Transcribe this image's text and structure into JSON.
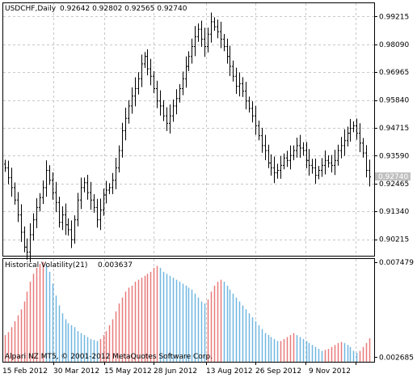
{
  "chart_data": [
    {
      "type": "bar",
      "chart_style": "ohlc-bars",
      "title": "USDCHF,Daily",
      "ohlc_text": "0.92642 0.92802 0.92565 0.92740",
      "symbol": "USDCHF",
      "timeframe": "Daily",
      "last_ohlc": {
        "open": 0.92642,
        "high": 0.92802,
        "low": 0.92565,
        "close": 0.9274
      },
      "last_price_label": "0.92740",
      "ylim": [
        0.8955,
        0.9975
      ],
      "y_ticks": [
        "0.99215",
        "0.98090",
        "0.96965",
        "0.95840",
        "0.94715",
        "0.93590",
        "0.92465",
        "0.91340",
        "0.90215"
      ],
      "grid": true,
      "series": [
        {
          "values": [
            0.931,
            0.927,
            0.923,
            0.918,
            0.912,
            0.905,
            0.899,
            0.897,
            0.904,
            0.91,
            0.915,
            0.919,
            0.923,
            0.93,
            0.926,
            0.921,
            0.917,
            0.909,
            0.912,
            0.908,
            0.906,
            0.902,
            0.91,
            0.918,
            0.923,
            0.925,
            0.921,
            0.918,
            0.915,
            0.91,
            0.914,
            0.92,
            0.922,
            0.923,
            0.926,
            0.931,
            0.938,
            0.946,
            0.951,
            0.956,
            0.96,
            0.963,
            0.967,
            0.973,
            0.976,
            0.971,
            0.968,
            0.963,
            0.958,
            0.956,
            0.952,
            0.949,
            0.952,
            0.956,
            0.959,
            0.963,
            0.967,
            0.972,
            0.976,
            0.98,
            0.984,
            0.987,
            0.983,
            0.98,
            0.985,
            0.99,
            0.988,
            0.986,
            0.983,
            0.98,
            0.976,
            0.972,
            0.968,
            0.964,
            0.965,
            0.962,
            0.958,
            0.955,
            0.952,
            0.948,
            0.944,
            0.94,
            0.938,
            0.933,
            0.931,
            0.929,
            0.93,
            0.932,
            0.935,
            0.934,
            0.936,
            0.938,
            0.94,
            0.939,
            0.938,
            0.934,
            0.932,
            0.931,
            0.928,
            0.93,
            0.932,
            0.934,
            0.933,
            0.932,
            0.934,
            0.938,
            0.94,
            0.942,
            0.945,
            0.947,
            0.948,
            0.945,
            0.941,
            0.937,
            0.93,
            0.9274
          ]
        }
      ]
    },
    {
      "type": "bar",
      "title": "Historical Volatility(21)",
      "last_value": "0.003637",
      "ylim": [
        0.00245,
        0.00765
      ],
      "y_ticks": [
        "0.007479",
        "0.002685"
      ],
      "grid": true,
      "series": [
        {
          "values": [
            0.0038,
            0.00395,
            0.0042,
            0.0045,
            0.0048,
            0.0051,
            0.0055,
            0.006,
            0.0065,
            0.0069,
            0.0072,
            0.0074,
            0.0075,
            0.00735,
            0.007,
            0.0064,
            0.0058,
            0.0053,
            0.0049,
            0.0046,
            0.0044,
            0.0043,
            0.0042,
            0.004,
            0.0039,
            0.0038,
            0.0037,
            0.0036,
            0.00355,
            0.0035,
            0.0036,
            0.0038,
            0.004,
            0.0043,
            0.0046,
            0.005,
            0.0054,
            0.0057,
            0.006,
            0.0062,
            0.0063,
            0.0065,
            0.0066,
            0.0067,
            0.0068,
            0.0069,
            0.007,
            0.0072,
            0.0073,
            0.0072,
            0.007,
            0.0069,
            0.0068,
            0.0067,
            0.0066,
            0.0065,
            0.0064,
            0.0063,
            0.0062,
            0.0061,
            0.0059,
            0.0057,
            0.0055,
            0.0054,
            0.0056,
            0.006,
            0.0063,
            0.0065,
            0.0066,
            0.0065,
            0.0063,
            0.0061,
            0.0059,
            0.0057,
            0.0055,
            0.0053,
            0.0051,
            0.0049,
            0.0047,
            0.0045,
            0.0043,
            0.0041,
            0.0039,
            0.0038,
            0.0037,
            0.0036,
            0.0035,
            0.0035,
            0.0036,
            0.0037,
            0.0038,
            0.0039,
            0.0038,
            0.0037,
            0.0036,
            0.0035,
            0.0034,
            0.0033,
            0.0032,
            0.0031,
            0.003,
            0.00305,
            0.0031,
            0.0032,
            0.0033,
            0.0034,
            0.00345,
            0.0034,
            0.0033,
            0.0032,
            0.003,
            0.0029,
            0.003,
            0.0032,
            0.0034,
            0.00364
          ],
          "colors": [
            "#e87a7a",
            "#6fb6e0"
          ]
        }
      ],
      "watermark": "Alpari NZ MT5, © 2001-2012 MetaQuotes Software Corp."
    }
  ],
  "x_ticks": [
    "15 Feb 2012",
    "30 Mar 2012",
    "15 May 2012",
    "28 Jun 2012",
    "13 Aug 2012",
    "26 Sep 2012",
    "9 Nov 2012"
  ],
  "colors": {
    "bars": "#000000",
    "grid": "#c8c8c8",
    "frame": "#000000",
    "price_tag_bg": "#c0c0c0",
    "price_tag_text": "#ffffff"
  }
}
